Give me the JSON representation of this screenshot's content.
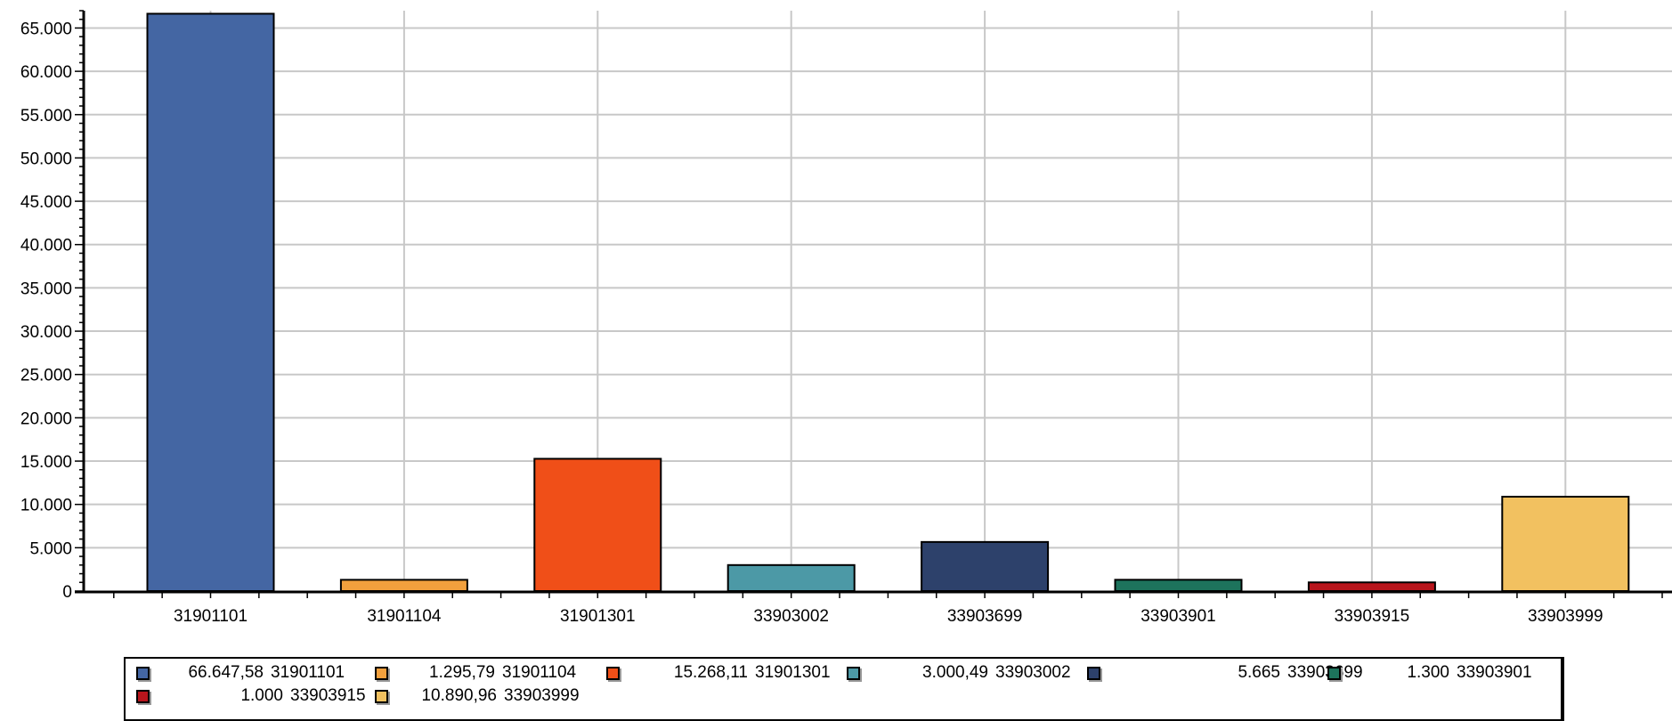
{
  "chart_data": {
    "type": "bar",
    "title": "",
    "xlabel": "",
    "ylabel": "",
    "ylim": [
      0,
      67000
    ],
    "yticks": [
      "0",
      "5.000",
      "10.000",
      "15.000",
      "20.000",
      "25.000",
      "30.000",
      "35.000",
      "40.000",
      "45.000",
      "50.000",
      "55.000",
      "60.000",
      "65.000"
    ],
    "grid": true,
    "legend_position": "bottom",
    "categories": [
      "31901101",
      "31901104",
      "31901301",
      "33903002",
      "33903699",
      "33903901",
      "33903915",
      "33903999"
    ],
    "values": [
      66647.58,
      1295.79,
      15268.11,
      3000.49,
      5665,
      1300,
      1000,
      10890.96
    ],
    "colors": [
      "#4466a3",
      "#f2a03d",
      "#f04f18",
      "#4c99a6",
      "#2d416b",
      "#1d735c",
      "#b8151c",
      "#f2c160"
    ],
    "legend": [
      {
        "value": "66.647,58",
        "label": "31901101"
      },
      {
        "value": "1.295,79",
        "label": "31901104"
      },
      {
        "value": "15.268,11",
        "label": "31901301"
      },
      {
        "value": "3.000,49",
        "label": "33903002"
      },
      {
        "value": "5.665",
        "label": "33903699"
      },
      {
        "value": "1.300",
        "label": "33903901"
      },
      {
        "value": "1.000",
        "label": "33903915"
      },
      {
        "value": "10.890,96",
        "label": "33903999"
      }
    ]
  }
}
